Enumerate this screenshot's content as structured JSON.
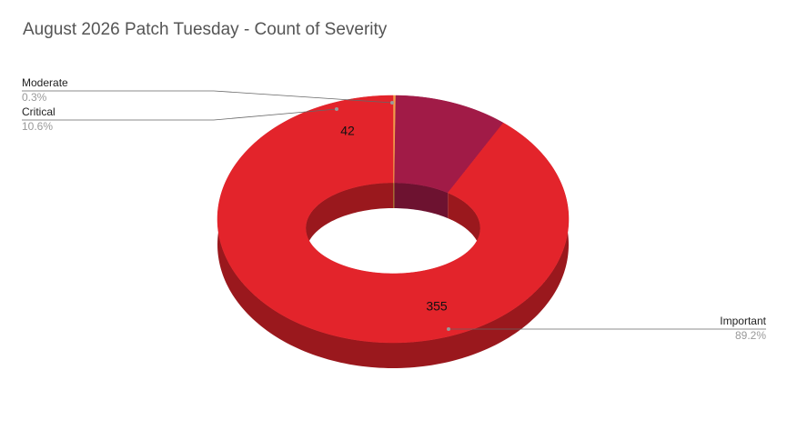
{
  "chart_data": {
    "type": "donut3d",
    "title": "August 2026 Patch Tuesday - Count of Severity",
    "categories": [
      "Moderate",
      "Critical",
      "Important"
    ],
    "values": [
      1,
      42,
      355
    ],
    "percent_labels": [
      "0.3%",
      "10.6%",
      "89.2%"
    ],
    "colors": [
      "#f29b4a",
      "#a11b47",
      "#e3242b"
    ]
  }
}
